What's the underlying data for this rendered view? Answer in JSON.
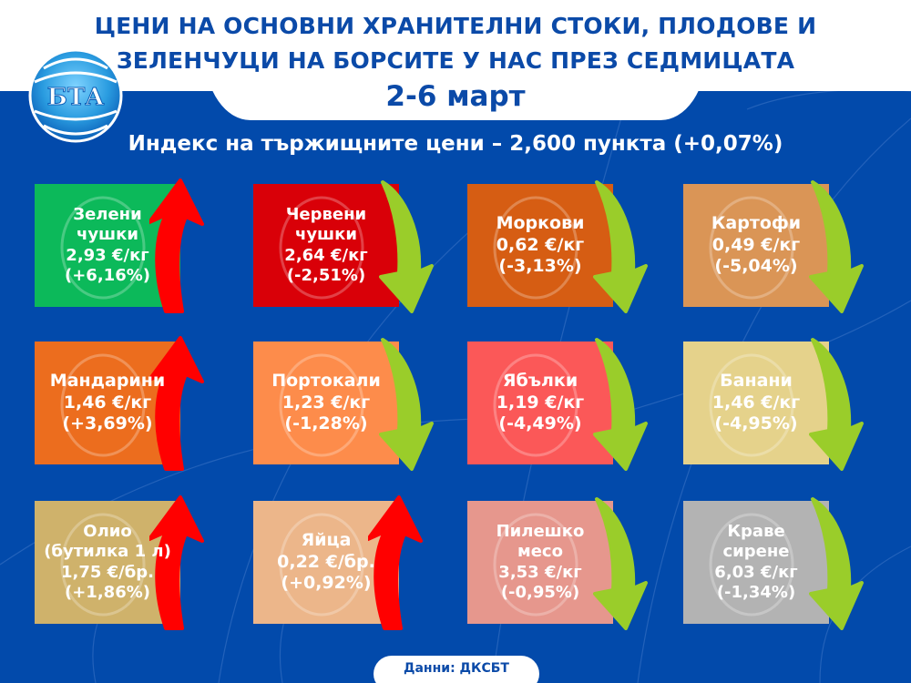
{
  "header": {
    "title_line1": "ЦЕНИ НА ОСНОВНИ ХРАНИТЕЛНИ СТОКИ, ПЛОДОВЕ И",
    "title_line2": "ЗЕЛЕНЧУЦИ НА БОРСИТЕ У НАС ПРЕЗ СЕДМИЦАТА",
    "date": "2-6 март",
    "logo_text": "БТА"
  },
  "index": {
    "text": "Индекс на тържищните цени – 2,600 пункта (+0,07%)"
  },
  "colors": {
    "background": "#024aab",
    "title": "#0b4aa8",
    "arrow_up": "#ff0000",
    "arrow_down": "#9acd2a"
  },
  "products": [
    {
      "name_line1": "Зелени",
      "name_line2": "чушки",
      "price": "2,93 €/кг",
      "change": "(+6,16%)",
      "direction": "up",
      "color": "#0cb95a",
      "icon": "pepper-icon"
    },
    {
      "name_line1": "Червени",
      "name_line2": "чушки",
      "price": "2,64 €/кг",
      "change": "(-2,51%)",
      "direction": "down",
      "color": "#d90008",
      "icon": "pepper-icon"
    },
    {
      "name_line1": "Моркови",
      "name_line2": "",
      "price": "0,62 €/кг",
      "change": "(-3,13%)",
      "direction": "down",
      "color": "#d65d13",
      "icon": "carrot-icon"
    },
    {
      "name_line1": "Картофи",
      "name_line2": "",
      "price": "0,49 €/кг",
      "change": "(-5,04%)",
      "direction": "down",
      "color": "#da9556",
      "icon": "potato-icon"
    },
    {
      "name_line1": "Мандарини",
      "name_line2": "",
      "price": "1,46 €/кг",
      "change": "(+3,69%)",
      "direction": "up",
      "color": "#ec6d1e",
      "icon": "tangerine-icon"
    },
    {
      "name_line1": "Портокали",
      "name_line2": "",
      "price": "1,23 €/кг",
      "change": "(-1,28%)",
      "direction": "down",
      "color": "#fd8c4b",
      "icon": "orange-icon"
    },
    {
      "name_line1": "Ябълки",
      "name_line2": "",
      "price": "1,19 €/кг",
      "change": "(-4,49%)",
      "direction": "down",
      "color": "#fb5858",
      "icon": "apple-icon"
    },
    {
      "name_line1": "Банани",
      "name_line2": "",
      "price": "1,46 €/кг",
      "change": "(-4,95%)",
      "direction": "down",
      "color": "#e5d28b",
      "icon": "banana-icon"
    },
    {
      "name_line1": "Олио",
      "name_line2": "(бутилка 1 л)",
      "price": "1,75 €/бр.",
      "change": "(+1,86%)",
      "direction": "up",
      "color": "#cfb26b",
      "icon": "oil-bottle-icon"
    },
    {
      "name_line1": "Яйца",
      "name_line2": "",
      "price": "0,22 €/бр.",
      "change": "(+0,92%)",
      "direction": "up",
      "color": "#ecb68a",
      "icon": "egg-icon"
    },
    {
      "name_line1": "Пилешко",
      "name_line2": "месо",
      "price": "3,53 €/кг",
      "change": "(-0,95%)",
      "direction": "down",
      "color": "#e6978d",
      "icon": "chicken-icon"
    },
    {
      "name_line1": "Краве",
      "name_line2": "сирене",
      "price": "6,03 €/кг",
      "change": "(-1,34%)",
      "direction": "down",
      "color": "#b3b3b3",
      "icon": "cheese-icon"
    }
  ],
  "footer": {
    "source": "Данни: ДКСБТ"
  }
}
